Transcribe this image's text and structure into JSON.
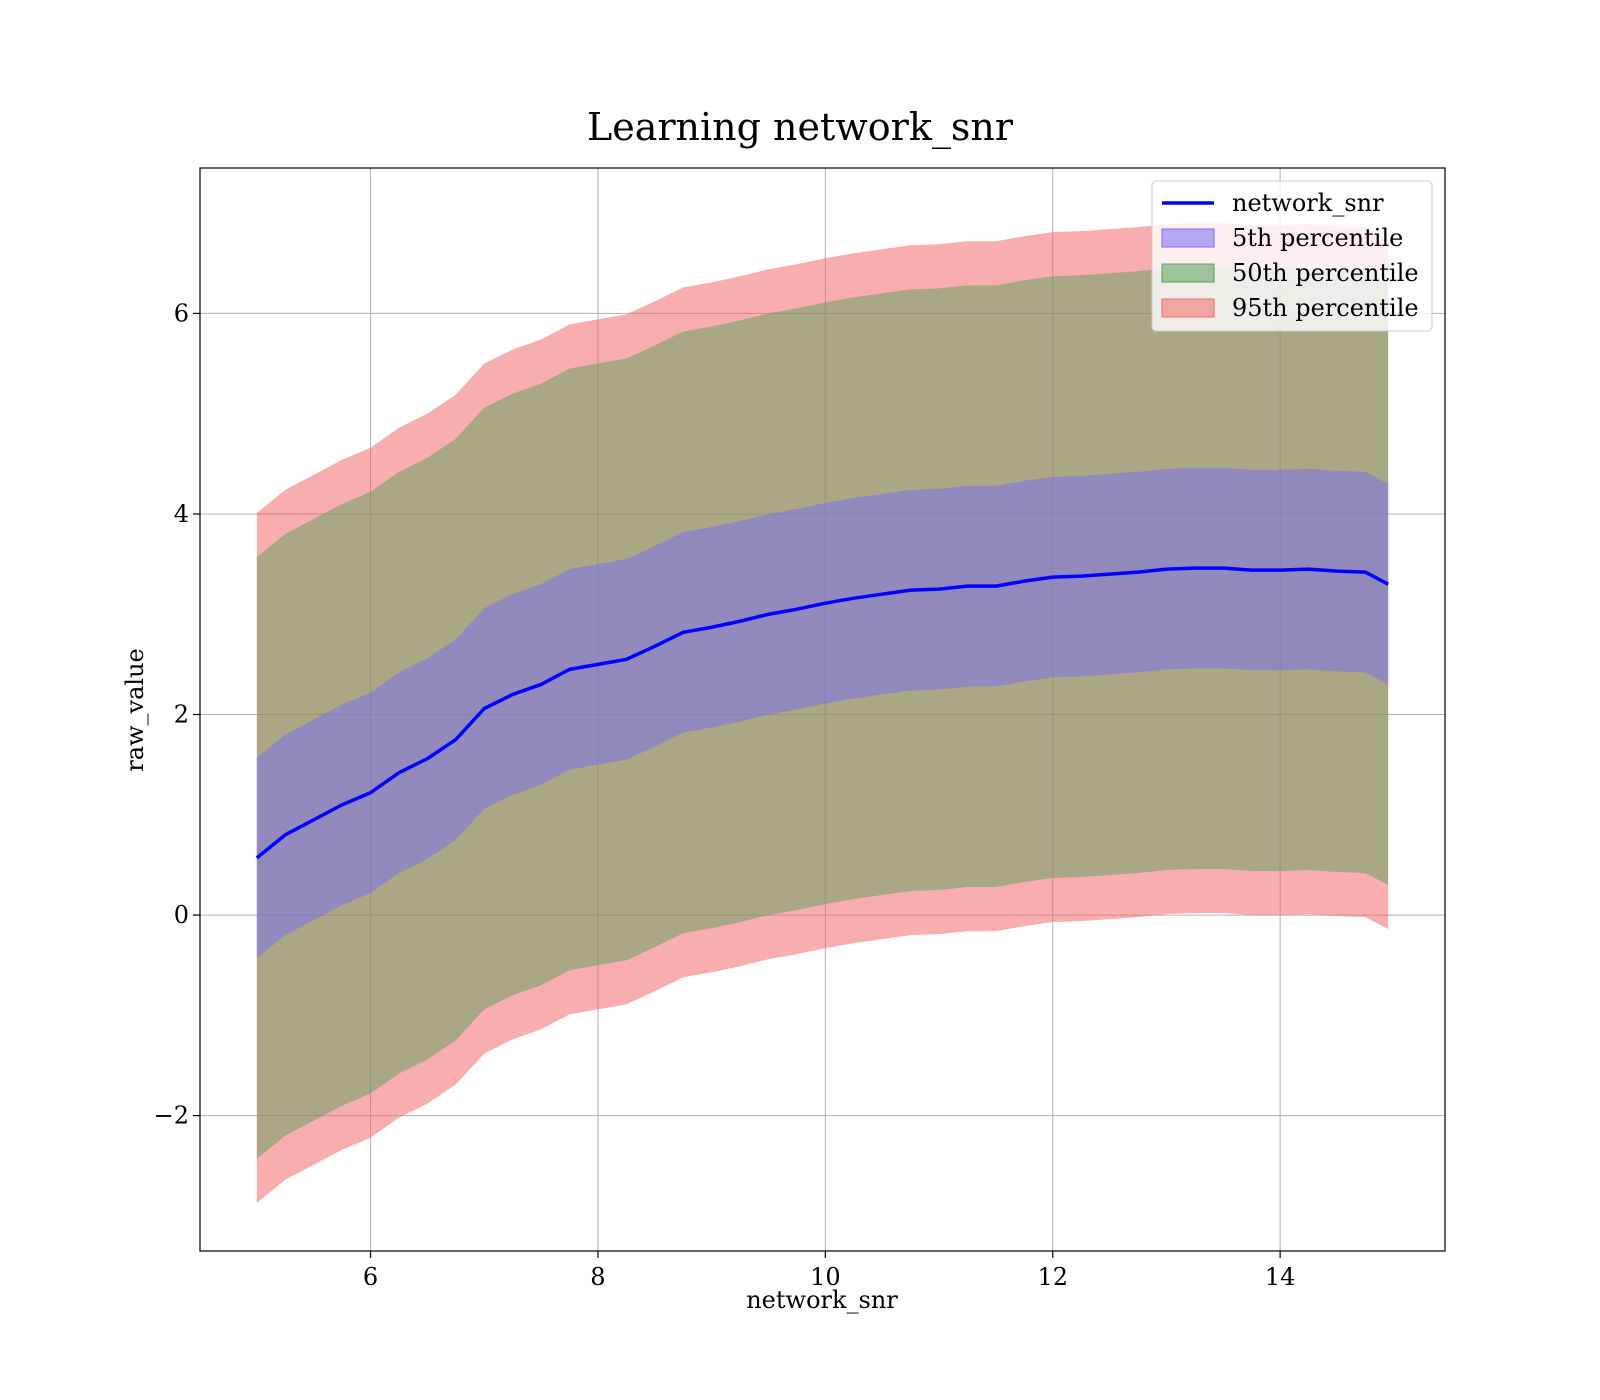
{
  "chart_data": {
    "type": "area",
    "title": "Learning network_snr",
    "xlabel": "network_snr",
    "ylabel": "raw_value",
    "xlim": [
      4.5,
      15.45
    ],
    "ylim": [
      -3.35,
      7.45
    ],
    "xticks": [
      6,
      8,
      10,
      12,
      14
    ],
    "yticks": [
      -2,
      0,
      2,
      4,
      6
    ],
    "xtick_labels": [
      "6",
      "8",
      "10",
      "12",
      "14"
    ],
    "ytick_labels": [
      "−2",
      "0",
      "2",
      "4",
      "6"
    ],
    "grid": true,
    "legend_position": "top-right",
    "legend": [
      {
        "label": "network_snr",
        "kind": "line",
        "color": "#0000ff"
      },
      {
        "label": "5th percentile",
        "kind": "patch",
        "color": "#7b6cf6"
      },
      {
        "label": "50th percentile",
        "kind": "patch",
        "color": "#5aa05a"
      },
      {
        "label": "95th percentile",
        "kind": "patch",
        "color": "#f26b6b"
      }
    ],
    "x": [
      5.0,
      5.25,
      5.5,
      5.75,
      6.0,
      6.25,
      6.5,
      6.75,
      7.0,
      7.25,
      7.5,
      7.75,
      8.0,
      8.25,
      8.5,
      8.75,
      9.0,
      9.25,
      9.5,
      9.75,
      10.0,
      10.25,
      10.5,
      10.75,
      11.0,
      11.25,
      11.5,
      11.75,
      12.0,
      12.25,
      12.5,
      12.75,
      13.0,
      13.25,
      13.5,
      13.75,
      14.0,
      14.25,
      14.5,
      14.75,
      14.95
    ],
    "series": [
      {
        "name": "network_snr",
        "type": "line",
        "color": "#0000ff",
        "values": [
          0.57,
          0.8,
          0.95,
          1.1,
          1.22,
          1.42,
          1.56,
          1.75,
          2.06,
          2.2,
          2.3,
          2.45,
          2.5,
          2.55,
          2.68,
          2.82,
          2.87,
          2.93,
          3.0,
          3.05,
          3.11,
          3.16,
          3.2,
          3.24,
          3.25,
          3.28,
          3.28,
          3.33,
          3.37,
          3.38,
          3.4,
          3.42,
          3.45,
          3.46,
          3.46,
          3.44,
          3.44,
          3.45,
          3.43,
          3.42,
          3.3
        ]
      },
      {
        "name": "5th percentile",
        "type": "band",
        "color": "#7b6cf6",
        "lower": [
          -0.43,
          -0.2,
          -0.05,
          0.1,
          0.22,
          0.42,
          0.56,
          0.75,
          1.06,
          1.2,
          1.3,
          1.45,
          1.5,
          1.55,
          1.68,
          1.82,
          1.87,
          1.93,
          2.0,
          2.05,
          2.11,
          2.16,
          2.2,
          2.24,
          2.25,
          2.28,
          2.28,
          2.33,
          2.37,
          2.38,
          2.4,
          2.42,
          2.45,
          2.46,
          2.46,
          2.44,
          2.44,
          2.45,
          2.43,
          2.42,
          2.3
        ],
        "upper": [
          1.57,
          1.8,
          1.95,
          2.1,
          2.22,
          2.42,
          2.56,
          2.75,
          3.06,
          3.2,
          3.3,
          3.45,
          3.5,
          3.55,
          3.68,
          3.82,
          3.87,
          3.93,
          4.0,
          4.05,
          4.11,
          4.16,
          4.2,
          4.24,
          4.25,
          4.28,
          4.28,
          4.33,
          4.37,
          4.38,
          4.4,
          4.42,
          4.45,
          4.46,
          4.46,
          4.44,
          4.44,
          4.45,
          4.43,
          4.42,
          4.3
        ]
      },
      {
        "name": "50th percentile",
        "type": "band",
        "color": "#5aa05a",
        "lower": [
          -2.43,
          -2.2,
          -2.05,
          -1.9,
          -1.78,
          -1.58,
          -1.44,
          -1.25,
          -0.94,
          -0.8,
          -0.7,
          -0.55,
          -0.5,
          -0.45,
          -0.32,
          -0.18,
          -0.13,
          -0.07,
          0.0,
          0.05,
          0.11,
          0.16,
          0.2,
          0.24,
          0.25,
          0.28,
          0.28,
          0.33,
          0.37,
          0.38,
          0.4,
          0.42,
          0.45,
          0.46,
          0.46,
          0.44,
          0.44,
          0.45,
          0.43,
          0.42,
          0.3
        ],
        "upper": [
          3.57,
          3.8,
          3.95,
          4.1,
          4.22,
          4.42,
          4.56,
          4.75,
          5.06,
          5.2,
          5.3,
          5.45,
          5.5,
          5.55,
          5.68,
          5.82,
          5.87,
          5.93,
          6.0,
          6.05,
          6.11,
          6.16,
          6.2,
          6.24,
          6.25,
          6.28,
          6.28,
          6.33,
          6.37,
          6.38,
          6.4,
          6.42,
          6.45,
          6.46,
          6.46,
          6.44,
          6.44,
          6.45,
          6.43,
          6.42,
          6.3
        ]
      },
      {
        "name": "95th percentile",
        "type": "band",
        "color": "#f26b6b",
        "lower": [
          -2.87,
          -2.64,
          -2.49,
          -2.34,
          -2.22,
          -2.02,
          -1.88,
          -1.69,
          -1.38,
          -1.24,
          -1.14,
          -0.99,
          -0.94,
          -0.89,
          -0.76,
          -0.62,
          -0.57,
          -0.51,
          -0.44,
          -0.39,
          -0.33,
          -0.28,
          -0.24,
          -0.2,
          -0.19,
          -0.16,
          -0.16,
          -0.11,
          -0.07,
          -0.06,
          -0.04,
          -0.02,
          0.01,
          0.02,
          0.02,
          0.0,
          0.0,
          0.01,
          -0.01,
          -0.02,
          -0.14
        ],
        "upper": [
          4.01,
          4.24,
          4.39,
          4.54,
          4.66,
          4.86,
          5.0,
          5.19,
          5.5,
          5.64,
          5.74,
          5.89,
          5.94,
          5.99,
          6.12,
          6.26,
          6.31,
          6.37,
          6.44,
          6.49,
          6.55,
          6.6,
          6.64,
          6.68,
          6.69,
          6.72,
          6.72,
          6.77,
          6.81,
          6.82,
          6.84,
          6.86,
          6.89,
          6.9,
          6.9,
          6.88,
          6.88,
          6.89,
          6.87,
          6.86,
          6.74
        ]
      }
    ]
  }
}
